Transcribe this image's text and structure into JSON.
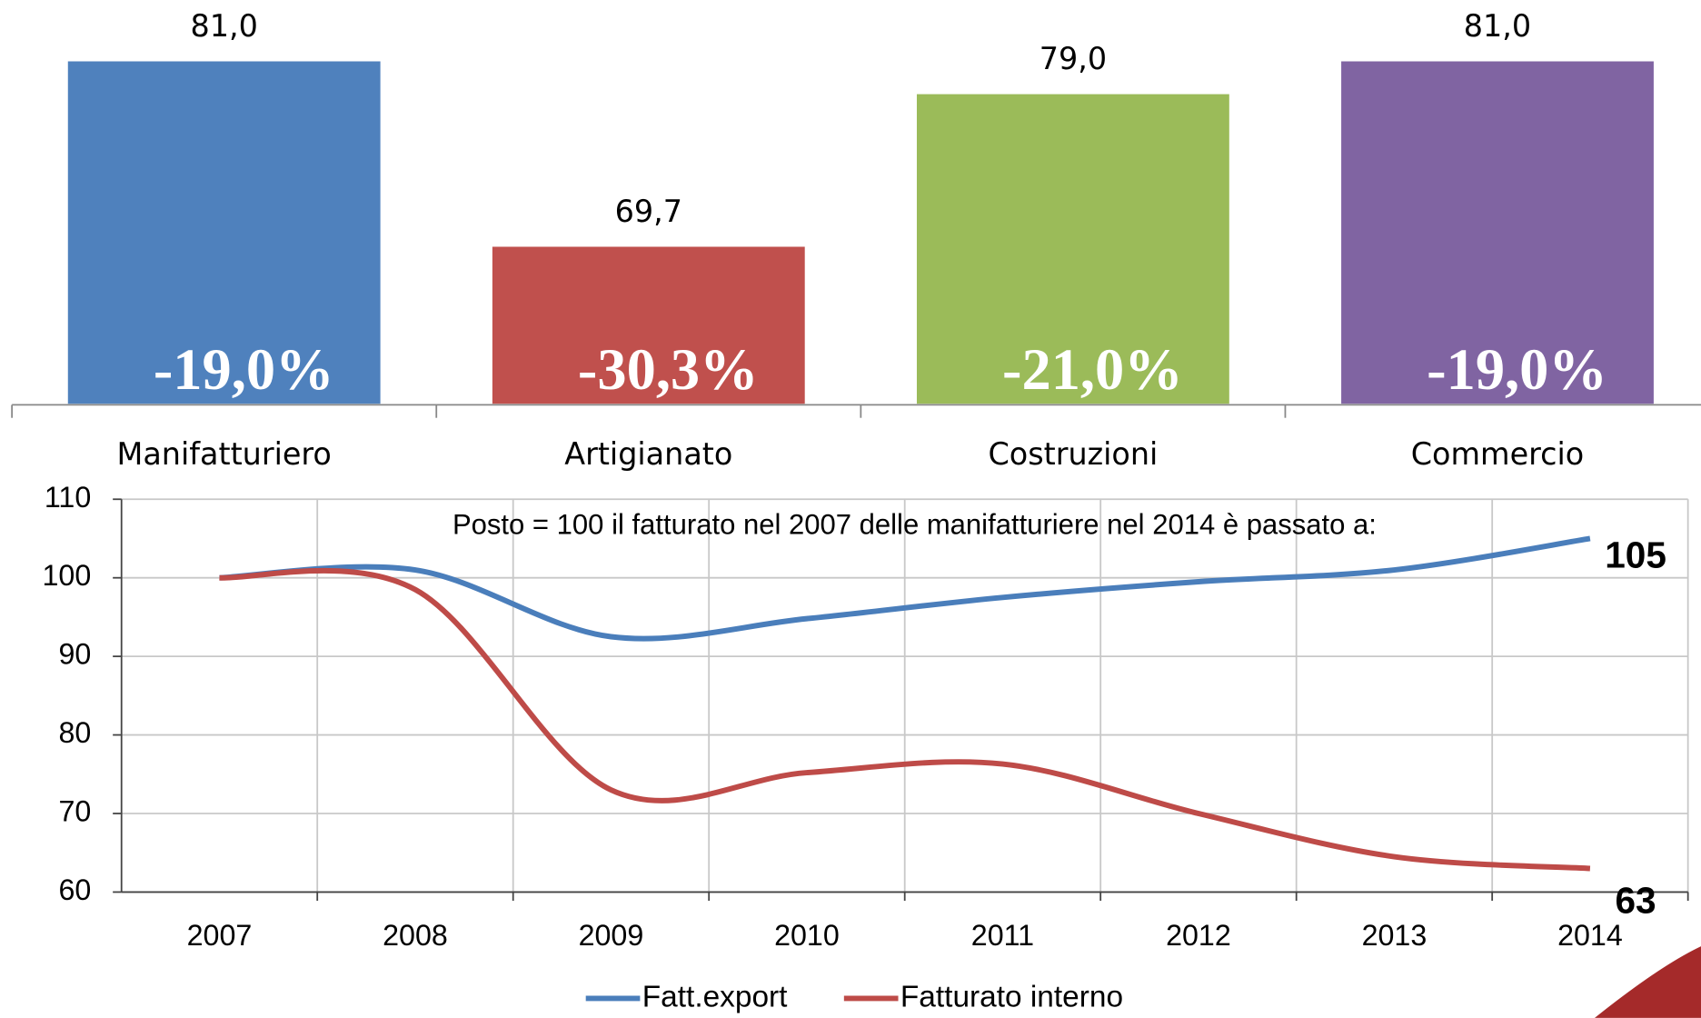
{
  "chart_data": [
    {
      "type": "bar",
      "categories": [
        "Manifatturiero",
        "Artigianato",
        "Costruzioni",
        "Commercio"
      ],
      "values": [
        81.0,
        69.7,
        79.0,
        81.0
      ],
      "value_labels": [
        "81,0",
        "69,7",
        "79,0",
        "81,0"
      ],
      "change_labels": [
        "-19,0%",
        "-30,3%",
        "-21,0%",
        "-19,0%"
      ],
      "colors": [
        "#4f81bd",
        "#c0504d",
        "#9bbb59",
        "#8064a2"
      ],
      "ylim": [
        60,
        85
      ]
    },
    {
      "type": "line",
      "annotation": "Posto = 100 il fatturato nel 2007 delle manifatturiere nel 2014 è passato a:",
      "categories": [
        "2007",
        "2008",
        "2009",
        "2010",
        "2011",
        "2012",
        "2013",
        "2014"
      ],
      "series": [
        {
          "name": "Fatt.export",
          "color": "#4a7ebb",
          "values": [
            100,
            101,
            92.5,
            94.8,
            97.5,
            99.5,
            101,
            105
          ],
          "end_label": "105",
          "end_label_color": "#1f6fb5"
        },
        {
          "name": "Fatturato interno",
          "color": "#be4b48",
          "values": [
            100,
            98.5,
            73,
            75.2,
            76.3,
            70,
            64.5,
            63
          ],
          "end_label": "63",
          "end_label_color": "#c00000"
        }
      ],
      "ylim": [
        60,
        110
      ],
      "yticks": [
        60,
        70,
        80,
        90,
        100,
        110
      ],
      "grid": true
    }
  ]
}
